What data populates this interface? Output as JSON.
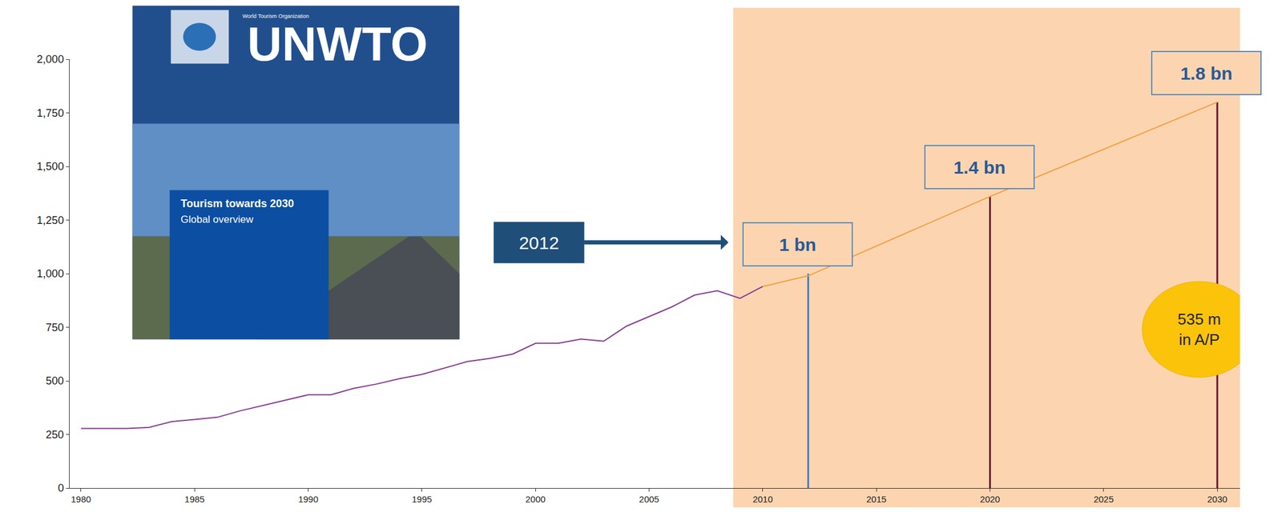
{
  "chart_data": {
    "type": "line",
    "series": [
      {
        "color": "#8a3a97",
        "x": [
          1980,
          1981,
          1982,
          1983,
          1984,
          1985,
          1986,
          1987,
          1988,
          1989,
          1990,
          1991,
          1992,
          1993,
          1994,
          1995,
          1996,
          1997,
          1998,
          1999,
          2000,
          2001,
          2002,
          2003,
          2004,
          2005,
          2006,
          2007,
          2008,
          2009,
          2010
        ],
        "values": [
          278,
          278,
          278,
          283,
          310,
          320,
          330,
          360,
          385,
          410,
          435,
          435,
          465,
          485,
          510,
          530,
          560,
          590,
          605,
          625,
          675,
          675,
          695,
          685,
          755,
          800,
          845,
          900,
          920,
          885,
          940
        ]
      },
      {
        "color": "#f5a040",
        "x": [
          2010,
          2012,
          2020,
          2030
        ],
        "values": [
          940,
          990,
          1360,
          1800
        ]
      }
    ],
    "markers": [
      {
        "x": 2012,
        "value": 1000,
        "label": "1 bn",
        "color": "#4a7ab5"
      },
      {
        "x": 2020,
        "value": 1360,
        "label": "1.4 bn",
        "color": "#6d1232"
      },
      {
        "x": 2030,
        "value": 1800,
        "label": "1.8 bn",
        "color": "#6d1232"
      }
    ],
    "pointer_label": "2012",
    "bubble": {
      "at": 2030,
      "lines": [
        "535 m",
        "in A/P"
      ],
      "color": "#fcc30b"
    },
    "highlight": {
      "from": 2008.7,
      "color": "#fcd5b0"
    },
    "cover": {
      "organization": "World Tourism Organization",
      "logo": "UNWTO",
      "title": "Tourism towards 2030",
      "subtitle": "Global overview"
    },
    "xlim": [
      1979.5,
      2031
    ],
    "xticks": [
      1980,
      1985,
      1990,
      1995,
      2000,
      2005,
      2010,
      2015,
      2020,
      2025,
      2030
    ],
    "ylim": [
      0,
      2000
    ],
    "yticks": [
      0,
      250,
      500,
      750,
      {
        "value": 1000,
        "label": "1,000"
      },
      {
        "value": 1250,
        "label": "1,250"
      },
      {
        "value": 1500,
        "label": "1,500"
      },
      {
        "value": 1750,
        "label": "1,750"
      },
      {
        "value": 2000,
        "label": "2,000"
      }
    ],
    "grid": false
  }
}
